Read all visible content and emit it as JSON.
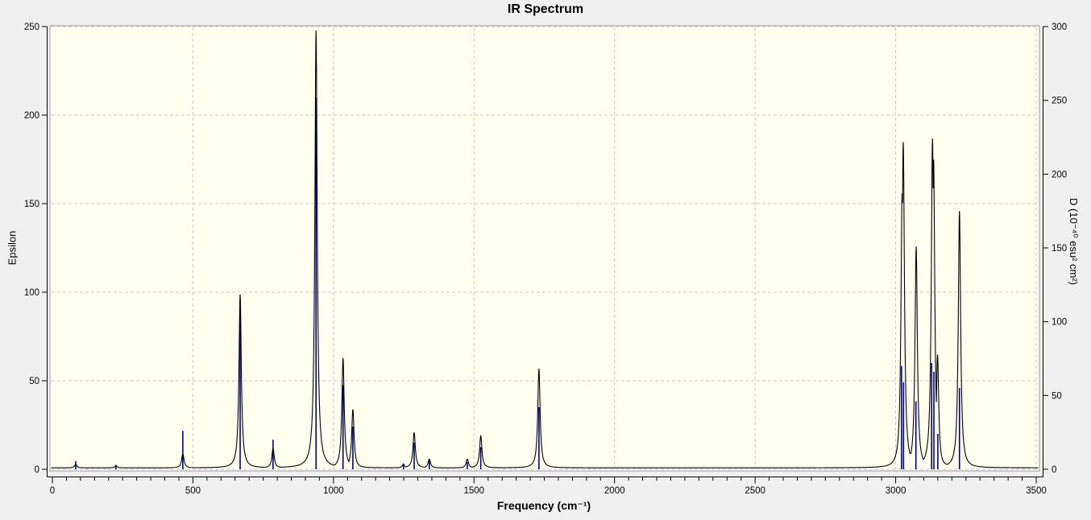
{
  "title": "IR Spectrum",
  "axes": {
    "x": {
      "title": "Frequency (cm⁻¹)",
      "range": [
        0,
        3500
      ],
      "major_ticks": [
        0,
        500,
        1000,
        1500,
        2000,
        2500,
        3000,
        3500
      ],
      "minor_tick_step": 50
    },
    "y_left": {
      "title": "Epsilon",
      "range": [
        0,
        250
      ],
      "ticks": [
        0,
        50,
        100,
        150,
        200,
        250
      ]
    },
    "y_right": {
      "title": "D (10⁻⁴⁰ esu² cm²)",
      "range": [
        0,
        300
      ],
      "ticks": [
        0,
        50,
        100,
        150,
        200,
        250,
        300
      ]
    }
  },
  "chart_data": {
    "type": "line",
    "subtype": "ir-spectrum-curve-with-intensity-sticks",
    "title": "IR Spectrum",
    "xlabel": "Frequency (cm⁻¹)",
    "ylabel_left": "Epsilon",
    "ylabel_right": "D (10⁻⁴⁰ esu² cm²)",
    "xlim": [
      0,
      3500
    ],
    "ylim_left": [
      0,
      250
    ],
    "ylim_right": [
      0,
      300
    ],
    "grid": true,
    "legend": false,
    "lorentzian_halfwidth_cm1": 5,
    "baseline_epsilon": 0.8,
    "colors": {
      "curve": "#000000",
      "sticks": "#00008b",
      "plot_background": "#fffff0",
      "page_background": "#f0f0f0",
      "grid": "#c9c9c9",
      "axis": "#000000"
    },
    "series": [
      {
        "name": "epsilon-curve",
        "axis": "left",
        "style": "lorentzian-sum",
        "peaks": [
          {
            "freq": 83,
            "epsilon": 2
          },
          {
            "freq": 226,
            "epsilon": 1.2
          },
          {
            "freq": 464,
            "epsilon": 8
          },
          {
            "freq": 668,
            "epsilon": 98
          },
          {
            "freq": 785,
            "epsilon": 11
          },
          {
            "freq": 938,
            "epsilon": 247
          },
          {
            "freq": 1034,
            "epsilon": 62
          },
          {
            "freq": 1069,
            "epsilon": 33
          },
          {
            "freq": 1249,
            "epsilon": 2
          },
          {
            "freq": 1287,
            "epsilon": 20
          },
          {
            "freq": 1341,
            "epsilon": 5
          },
          {
            "freq": 1476,
            "epsilon": 5
          },
          {
            "freq": 1524,
            "epsilon": 18
          },
          {
            "freq": 1731,
            "epsilon": 56
          },
          {
            "freq": 3023,
            "epsilon": 155
          },
          {
            "freq": 3027,
            "epsilon": 184
          },
          {
            "freq": 3073,
            "epsilon": 125
          },
          {
            "freq": 3131,
            "epsilon": 186
          },
          {
            "freq": 3135,
            "epsilon": 174
          },
          {
            "freq": 3149,
            "epsilon": 64
          },
          {
            "freq": 3227,
            "epsilon": 145
          }
        ]
      },
      {
        "name": "D-sticks",
        "axis": "right",
        "style": "vertical-stick",
        "sticks": [
          {
            "freq": 83,
            "D": 5.5
          },
          {
            "freq": 226,
            "D": 3
          },
          {
            "freq": 464,
            "D": 26
          },
          {
            "freq": 668,
            "D": 112
          },
          {
            "freq": 785,
            "D": 20
          },
          {
            "freq": 938,
            "D": 252
          },
          {
            "freq": 1034,
            "D": 57
          },
          {
            "freq": 1069,
            "D": 29
          },
          {
            "freq": 1249,
            "D": 4
          },
          {
            "freq": 1287,
            "D": 18
          },
          {
            "freq": 1341,
            "D": 6
          },
          {
            "freq": 1476,
            "D": 5
          },
          {
            "freq": 1524,
            "D": 15
          },
          {
            "freq": 1731,
            "D": 42
          },
          {
            "freq": 3021,
            "D": 70
          },
          {
            "freq": 3028,
            "D": 59
          },
          {
            "freq": 3072,
            "D": 46
          },
          {
            "freq": 3128,
            "D": 72
          },
          {
            "freq": 3136,
            "D": 66
          },
          {
            "freq": 3150,
            "D": 24
          },
          {
            "freq": 3227,
            "D": 55
          }
        ]
      }
    ]
  }
}
